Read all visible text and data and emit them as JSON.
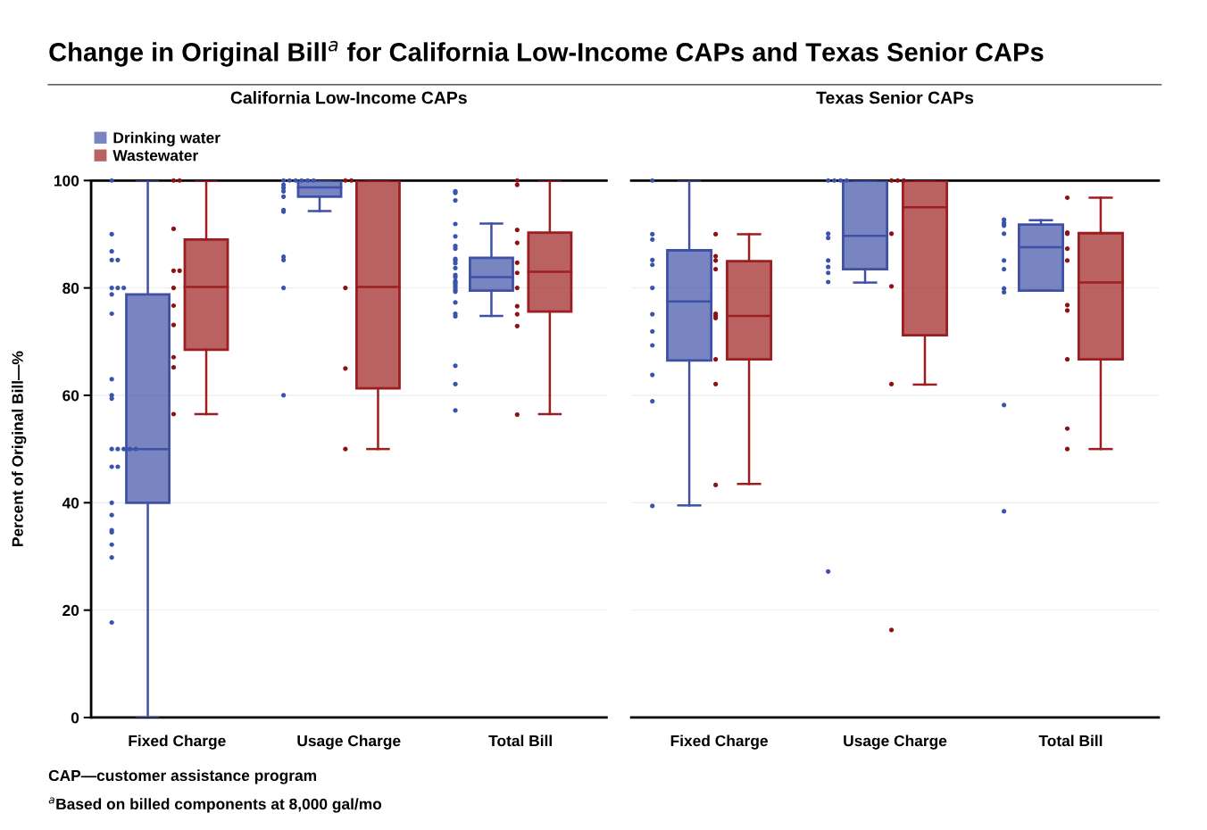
{
  "chart_data": [
    {
      "type": "box",
      "title": "Change in Original Bill$^{a}$ for California Low-Income CAPs and Texas Senior CAPs",
      "subtitle": "California Low-Income CAPs",
      "ylabel": "Percent of Original Bill—%",
      "categories": [
        "Fixed Charge",
        "Usage Charge",
        "Total Bill"
      ],
      "ylim": [
        0,
        100
      ],
      "yticks": [
        0,
        20,
        40,
        60,
        80,
        100
      ],
      "grid": "y",
      "legend": "top left",
      "annotations": [
        "CAP—customer assistance program",
        "$^{a}$Based on billed components at 8,000 gal/mo"
      ],
      "series": [
        {
          "name": "Drinking water",
          "color": "#3f51a6",
          "boxes": [
            {
              "low": 0,
              "q1": 40,
              "median": 50,
              "q3": 78.8,
              "high": 100
            },
            {
              "low": 94.3,
              "q1": 97,
              "median": 98.7,
              "q3": 100,
              "high": 100
            },
            {
              "low": 74.8,
              "q1": 79.5,
              "median": 82,
              "q3": 85.6,
              "high": 92
            }
          ]
        },
        {
          "name": "Wastewater",
          "color": "#9c1e20",
          "boxes": [
            {
              "low": 56.5,
              "q1": 68.5,
              "median": 80.2,
              "q3": 89,
              "high": 100
            },
            {
              "low": 50,
              "q1": 61.3,
              "median": 80.2,
              "q3": 100,
              "high": 100
            },
            {
              "low": 56.5,
              "q1": 75.6,
              "median": 83,
              "q3": 90.3,
              "high": 100
            }
          ]
        },
        {
          "type": "scatter",
          "color": "#3a53ac",
          "x": [
            "Fixed Charge",
            "Fixed Charge",
            "Fixed Charge",
            "Fixed Charge",
            "Fixed Charge",
            "Fixed Charge",
            "Fixed Charge",
            "Fixed Charge",
            "Fixed Charge",
            "Fixed Charge",
            "Fixed Charge",
            "Fixed Charge",
            "Fixed Charge",
            "Fixed Charge",
            "Fixed Charge",
            "Fixed Charge",
            "Fixed Charge",
            "Fixed Charge",
            "Fixed Charge",
            "Fixed Charge",
            "Fixed Charge",
            "Fixed Charge",
            "Fixed Charge",
            "Fixed Charge",
            "Fixed Charge",
            "Fixed Charge",
            "Fixed Charge",
            "Usage Charge",
            "Usage Charge",
            "Usage Charge",
            "Usage Charge",
            "Usage Charge",
            "Usage Charge",
            "Usage Charge",
            "Usage Charge",
            "Usage Charge",
            "Usage Charge",
            "Usage Charge",
            "Usage Charge",
            "Usage Charge",
            "Usage Charge",
            "Usage Charge",
            "Usage Charge",
            "Total Bill",
            "Total Bill",
            "Total Bill",
            "Total Bill",
            "Total Bill",
            "Total Bill",
            "Total Bill",
            "Total Bill",
            "Total Bill",
            "Total Bill",
            "Total Bill",
            "Total Bill",
            "Total Bill",
            "Total Bill",
            "Total Bill",
            "Total Bill",
            "Total Bill",
            "Total Bill",
            "Total Bill",
            "Total Bill",
            "Total Bill",
            "Total Bill",
            "Total Bill",
            "Total Bill",
            "Total Bill",
            "Total Bill"
          ],
          "values": [
            100,
            90,
            86.8,
            85.2,
            85.2,
            80,
            80,
            80,
            78.8,
            75.2,
            63,
            60,
            59.4,
            50,
            50,
            50,
            50,
            50,
            46.7,
            46.7,
            40,
            37.7,
            34.9,
            34.5,
            32.2,
            29.8,
            17.7,
            100,
            100,
            100,
            100,
            100,
            100,
            99.2,
            98.6,
            98,
            97,
            94.5,
            94.2,
            85.8,
            85.2,
            80,
            60,
            98,
            97.7,
            96.3,
            91.9,
            89.6,
            87.8,
            87.3,
            85.4,
            85.1,
            84.6,
            83.7,
            82.4,
            82,
            81.3,
            81,
            80.8,
            80.4,
            80,
            79.6,
            79.3,
            77.3,
            75.2,
            74.7,
            65.5,
            62.1,
            57.2
          ]
        },
        {
          "type": "scatter",
          "color": "#8c1014",
          "x": [
            "Fixed Charge",
            "Fixed Charge",
            "Fixed Charge",
            "Fixed Charge",
            "Fixed Charge",
            "Fixed Charge",
            "Fixed Charge",
            "Fixed Charge",
            "Fixed Charge",
            "Fixed Charge",
            "Fixed Charge",
            "Usage Charge",
            "Usage Charge",
            "Usage Charge",
            "Usage Charge",
            "Usage Charge",
            "Total Bill",
            "Total Bill",
            "Total Bill",
            "Total Bill",
            "Total Bill",
            "Total Bill",
            "Total Bill",
            "Total Bill",
            "Total Bill",
            "Total Bill",
            "Total Bill"
          ],
          "values": [
            100,
            100,
            91,
            83.2,
            83.2,
            80,
            76.7,
            73.1,
            67.1,
            65.2,
            56.5,
            100,
            100,
            80,
            65,
            50,
            100,
            99.2,
            90.8,
            88.4,
            84.7,
            82.8,
            80,
            76.6,
            75.1,
            72.9,
            56.4
          ]
        }
      ]
    },
    {
      "type": "box",
      "subtitle": "Texas Senior CAPs",
      "categories": [
        "Fixed Charge",
        "Usage Charge",
        "Total Bill"
      ],
      "ylim": [
        0,
        100
      ],
      "yticks": [
        0,
        20,
        40,
        60,
        80,
        100
      ],
      "grid": "y",
      "tick_labels": "x",
      "series": [
        {
          "color": "#3f51a6",
          "boxes": [
            {
              "low": 39.5,
              "q1": 66.5,
              "median": 77.5,
              "q3": 87,
              "high": 100
            },
            {
              "low": 81,
              "q1": 83.5,
              "median": 89.7,
              "q3": 100,
              "high": 100
            },
            {
              "low": 79.5,
              "q1": 79.5,
              "median": 87.6,
              "q3": 91.8,
              "high": 92.6
            }
          ]
        },
        {
          "color": "#9c1e20",
          "boxes": [
            {
              "low": 43.5,
              "q1": 66.7,
              "median": 74.8,
              "q3": 85,
              "high": 90
            },
            {
              "low": 62,
              "q1": 71.2,
              "median": 95,
              "q3": 100,
              "high": 100
            },
            {
              "low": 50,
              "q1": 66.7,
              "median": 81,
              "q3": 90.2,
              "high": 96.8
            }
          ]
        },
        {
          "type": "scatter",
          "color": "#3a53ac",
          "x": [
            "Fixed Charge",
            "Fixed Charge",
            "Fixed Charge",
            "Fixed Charge",
            "Fixed Charge",
            "Fixed Charge",
            "Fixed Charge",
            "Fixed Charge",
            "Fixed Charge",
            "Fixed Charge",
            "Fixed Charge",
            "Fixed Charge",
            "Usage Charge",
            "Usage Charge",
            "Usage Charge",
            "Usage Charge",
            "Usage Charge",
            "Usage Charge",
            "Usage Charge",
            "Usage Charge",
            "Usage Charge",
            "Usage Charge",
            "Usage Charge",
            "Total Bill",
            "Total Bill",
            "Total Bill",
            "Total Bill",
            "Total Bill",
            "Total Bill",
            "Total Bill",
            "Total Bill",
            "Total Bill",
            "Total Bill",
            "Total Bill"
          ],
          "values": [
            100,
            90,
            89,
            85.2,
            84.3,
            80,
            75.1,
            71.9,
            69.3,
            63.8,
            58.9,
            39.4,
            100,
            100,
            100,
            100,
            90.1,
            89.3,
            85.1,
            83.9,
            82.8,
            81.1,
            27.2,
            92.7,
            92.1,
            91.9,
            91.6,
            90.1,
            85.1,
            83.5,
            79.9,
            79.2,
            58.2,
            38.4
          ]
        },
        {
          "type": "scatter",
          "color": "#8c1014",
          "x": [
            "Fixed Charge",
            "Fixed Charge",
            "Fixed Charge",
            "Fixed Charge",
            "Fixed Charge",
            "Fixed Charge",
            "Fixed Charge",
            "Fixed Charge",
            "Fixed Charge",
            "Fixed Charge",
            "Usage Charge",
            "Usage Charge",
            "Usage Charge",
            "Usage Charge",
            "Usage Charge",
            "Usage Charge",
            "Usage Charge",
            "Total Bill",
            "Total Bill",
            "Total Bill",
            "Total Bill",
            "Total Bill",
            "Total Bill",
            "Total Bill",
            "Total Bill",
            "Total Bill",
            "Total Bill"
          ],
          "values": [
            90,
            85.9,
            85.1,
            83.5,
            75.2,
            74.8,
            74.4,
            66.7,
            62.1,
            43.3,
            100,
            100,
            100,
            90.1,
            80.3,
            62.1,
            16.3,
            96.8,
            90.3,
            90.1,
            87.3,
            85.1,
            76.8,
            75.8,
            66.7,
            53.8,
            50
          ]
        }
      ]
    }
  ]
}
